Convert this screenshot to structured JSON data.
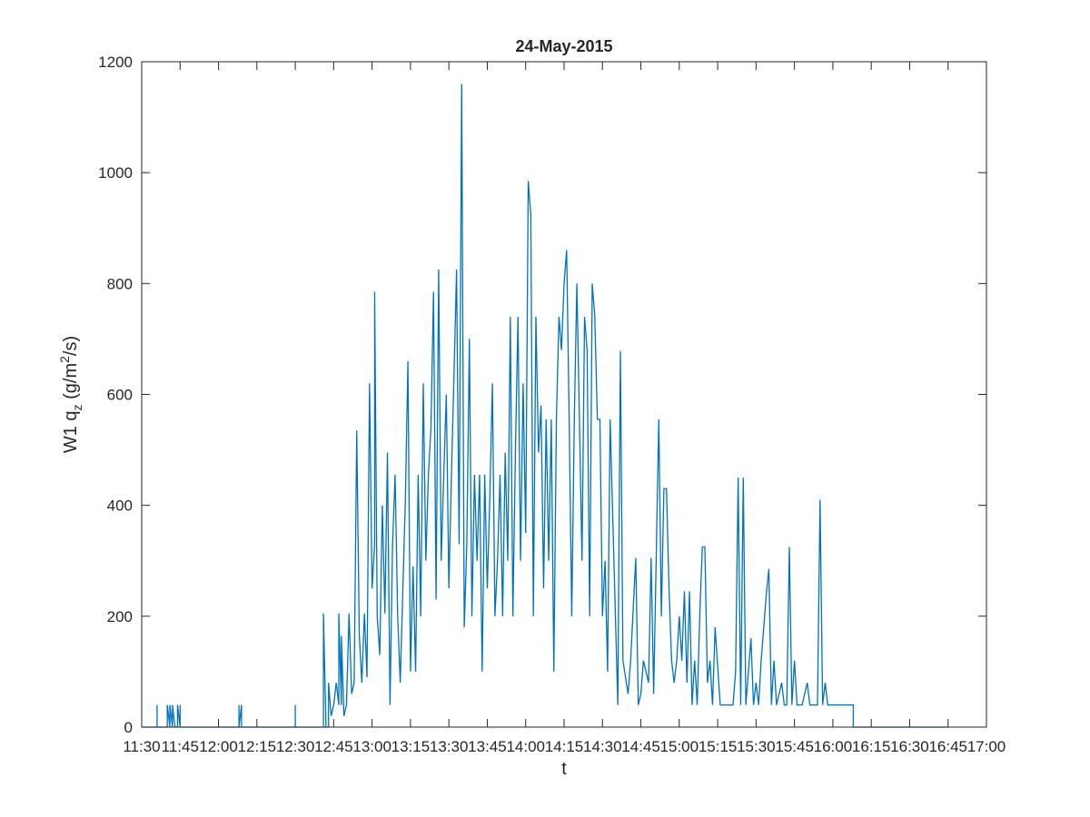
{
  "chart_data": {
    "type": "line",
    "title": "24-May-2015",
    "xlabel": "t",
    "ylabel_prefix": "W1 q",
    "ylabel_subscript": "z",
    "ylabel_mid": " (g/m",
    "ylabel_superscript": "2",
    "ylabel_suffix": "/s)",
    "x_unit": "minutes",
    "xlim": [
      "11:30",
      "17:00"
    ],
    "ylim": [
      0,
      1200
    ],
    "xticks": [
      "11:30",
      "11:45",
      "12:00",
      "12:15",
      "12:30",
      "12:45",
      "13:00",
      "13:15",
      "13:30",
      "13:45",
      "14:00",
      "14:15",
      "14:30",
      "14:45",
      "15:00",
      "15:15",
      "15:30",
      "15:45",
      "16:00",
      "16:15",
      "16:30",
      "16:45",
      "17:00"
    ],
    "yticks": [
      0,
      200,
      400,
      600,
      800,
      1000,
      1200
    ],
    "grid": false,
    "line_color": "#0072BD",
    "series": [
      {
        "values": [
          [
            "11:30",
            0
          ],
          [
            "11:36",
            0
          ],
          [
            "11:36",
            40
          ],
          [
            "11:36",
            0
          ],
          [
            "11:40",
            0
          ],
          [
            "11:40",
            40
          ],
          [
            "11:41",
            0
          ],
          [
            "11:41",
            40
          ],
          [
            "11:42",
            0
          ],
          [
            "11:42",
            40
          ],
          [
            "11:43",
            0
          ],
          [
            "11:44",
            0
          ],
          [
            "11:44",
            40
          ],
          [
            "11:45",
            0
          ],
          [
            "11:45",
            40
          ],
          [
            "11:45",
            0
          ],
          [
            "12:08",
            0
          ],
          [
            "12:08",
            40
          ],
          [
            "12:08",
            0
          ],
          [
            "12:09",
            40
          ],
          [
            "12:09",
            0
          ],
          [
            "12:30",
            0
          ],
          [
            "12:30",
            40
          ],
          [
            "12:30",
            0
          ],
          [
            "12:41",
            0
          ],
          [
            "12:41",
            205
          ],
          [
            "12:42",
            0
          ],
          [
            "12:43",
            0
          ],
          [
            "12:43",
            80
          ],
          [
            "12:44",
            20
          ],
          [
            "12:45",
            40
          ],
          [
            "12:46",
            80
          ],
          [
            "12:47",
            40
          ],
          [
            "12:47",
            205
          ],
          [
            "12:48",
            40
          ],
          [
            "12:48",
            165
          ],
          [
            "12:49",
            20
          ],
          [
            "12:50",
            40
          ],
          [
            "12:51",
            205
          ],
          [
            "12:52",
            60
          ],
          [
            "12:53",
            80
          ],
          [
            "12:54",
            535
          ],
          [
            "12:55",
            165
          ],
          [
            "12:56",
            80
          ],
          [
            "12:57",
            205
          ],
          [
            "12:58",
            90
          ],
          [
            "12:59",
            620
          ],
          [
            "13:00",
            250
          ],
          [
            "13:01",
            330
          ],
          [
            "13:01",
            785
          ],
          [
            "13:02",
            200
          ],
          [
            "13:03",
            130
          ],
          [
            "13:04",
            400
          ],
          [
            "13:05",
            205
          ],
          [
            "13:06",
            495
          ],
          [
            "13:07",
            40
          ],
          [
            "13:08",
            330
          ],
          [
            "13:09",
            455
          ],
          [
            "13:10",
            200
          ],
          [
            "13:11",
            80
          ],
          [
            "13:13",
            410
          ],
          [
            "13:14",
            660
          ],
          [
            "13:15",
            100
          ],
          [
            "13:16",
            290
          ],
          [
            "13:17",
            100
          ],
          [
            "13:18",
            455
          ],
          [
            "13:19",
            200
          ],
          [
            "13:20",
            620
          ],
          [
            "13:21",
            300
          ],
          [
            "13:22",
            455
          ],
          [
            "13:23",
            540
          ],
          [
            "13:24",
            785
          ],
          [
            "13:25",
            230
          ],
          [
            "13:26",
            825
          ],
          [
            "13:27",
            300
          ],
          [
            "13:28",
            455
          ],
          [
            "13:29",
            600
          ],
          [
            "13:30",
            250
          ],
          [
            "13:31",
            455
          ],
          [
            "13:32",
            635
          ],
          [
            "13:33",
            825
          ],
          [
            "13:34",
            330
          ],
          [
            "13:35",
            1160
          ],
          [
            "13:36",
            180
          ],
          [
            "13:37",
            330
          ],
          [
            "13:38",
            700
          ],
          [
            "13:39",
            200
          ],
          [
            "13:40",
            455
          ],
          [
            "13:41",
            300
          ],
          [
            "13:42",
            455
          ],
          [
            "13:43",
            100
          ],
          [
            "13:44",
            455
          ],
          [
            "13:45",
            250
          ],
          [
            "13:46",
            415
          ],
          [
            "13:47",
            620
          ],
          [
            "13:48",
            200
          ],
          [
            "13:49",
            300
          ],
          [
            "13:50",
            455
          ],
          [
            "13:51",
            200
          ],
          [
            "13:52",
            495
          ],
          [
            "13:53",
            300
          ],
          [
            "13:54",
            740
          ],
          [
            "13:55",
            200
          ],
          [
            "13:56",
            500
          ],
          [
            "13:57",
            740
          ],
          [
            "13:58",
            300
          ],
          [
            "13:59",
            620
          ],
          [
            "14:00",
            350
          ],
          [
            "14:01",
            985
          ],
          [
            "14:02",
            925
          ],
          [
            "14:03",
            200
          ],
          [
            "14:04",
            740
          ],
          [
            "14:05",
            495
          ],
          [
            "14:06",
            580
          ],
          [
            "14:07",
            250
          ],
          [
            "14:08",
            555
          ],
          [
            "14:09",
            300
          ],
          [
            "14:10",
            555
          ],
          [
            "14:11",
            100
          ],
          [
            "14:12",
            555
          ],
          [
            "14:13",
            740
          ],
          [
            "14:14",
            680
          ],
          [
            "14:15",
            800
          ],
          [
            "14:16",
            860
          ],
          [
            "14:17",
            555
          ],
          [
            "14:18",
            200
          ],
          [
            "14:19",
            555
          ],
          [
            "14:20",
            800
          ],
          [
            "14:21",
            555
          ],
          [
            "14:22",
            300
          ],
          [
            "14:23",
            740
          ],
          [
            "14:24",
            680
          ],
          [
            "14:25",
            200
          ],
          [
            "14:26",
            800
          ],
          [
            "14:27",
            740
          ],
          [
            "14:28",
            555
          ],
          [
            "14:29",
            555
          ],
          [
            "14:30",
            200
          ],
          [
            "14:31",
            300
          ],
          [
            "14:32",
            100
          ],
          [
            "14:33",
            555
          ],
          [
            "14:35",
            210
          ],
          [
            "14:36",
            40
          ],
          [
            "14:37",
            678
          ],
          [
            "14:38",
            120
          ],
          [
            "14:40",
            60
          ],
          [
            "14:41",
            120
          ],
          [
            "14:43",
            305
          ],
          [
            "14:44",
            40
          ],
          [
            "14:45",
            60
          ],
          [
            "14:46",
            120
          ],
          [
            "14:48",
            80
          ],
          [
            "14:49",
            305
          ],
          [
            "14:50",
            60
          ],
          [
            "14:52",
            555
          ],
          [
            "14:53",
            200
          ],
          [
            "14:54",
            430
          ],
          [
            "14:55",
            430
          ],
          [
            "14:56",
            250
          ],
          [
            "14:57",
            120
          ],
          [
            "14:58",
            80
          ],
          [
            "14:59",
            120
          ],
          [
            "15:00",
            200
          ],
          [
            "15:01",
            120
          ],
          [
            "15:02",
            245
          ],
          [
            "15:03",
            80
          ],
          [
            "15:04",
            245
          ],
          [
            "15:05",
            40
          ],
          [
            "15:06",
            120
          ],
          [
            "15:07",
            40
          ],
          [
            "15:08",
            200
          ],
          [
            "15:09",
            325
          ],
          [
            "15:10",
            325
          ],
          [
            "15:11",
            80
          ],
          [
            "15:12",
            120
          ],
          [
            "15:13",
            40
          ],
          [
            "15:14",
            180
          ],
          [
            "15:16",
            40
          ],
          [
            "15:18",
            40
          ],
          [
            "15:20",
            40
          ],
          [
            "15:21",
            40
          ],
          [
            "15:22",
            100
          ],
          [
            "15:23",
            450
          ],
          [
            "15:24",
            40
          ],
          [
            "15:25",
            450
          ],
          [
            "15:26",
            40
          ],
          [
            "15:28",
            160
          ],
          [
            "15:29",
            40
          ],
          [
            "15:30",
            80
          ],
          [
            "15:31",
            40
          ],
          [
            "15:32",
            120
          ],
          [
            "15:34",
            240
          ],
          [
            "15:35",
            285
          ],
          [
            "15:36",
            40
          ],
          [
            "15:37",
            120
          ],
          [
            "15:38",
            40
          ],
          [
            "15:40",
            80
          ],
          [
            "15:41",
            40
          ],
          [
            "15:42",
            40
          ],
          [
            "15:43",
            325
          ],
          [
            "15:44",
            40
          ],
          [
            "15:45",
            120
          ],
          [
            "15:46",
            40
          ],
          [
            "15:48",
            40
          ],
          [
            "15:50",
            80
          ],
          [
            "15:51",
            40
          ],
          [
            "15:53",
            40
          ],
          [
            "15:54",
            40
          ],
          [
            "15:55",
            410
          ],
          [
            "15:56",
            40
          ],
          [
            "15:57",
            80
          ],
          [
            "15:58",
            40
          ],
          [
            "15:59",
            40
          ],
          [
            "16:00",
            40
          ],
          [
            "16:01",
            40
          ],
          [
            "16:08",
            40
          ],
          [
            "16:08",
            0
          ],
          [
            "16:10",
            0
          ],
          [
            "16:45",
            0
          ]
        ]
      }
    ]
  }
}
